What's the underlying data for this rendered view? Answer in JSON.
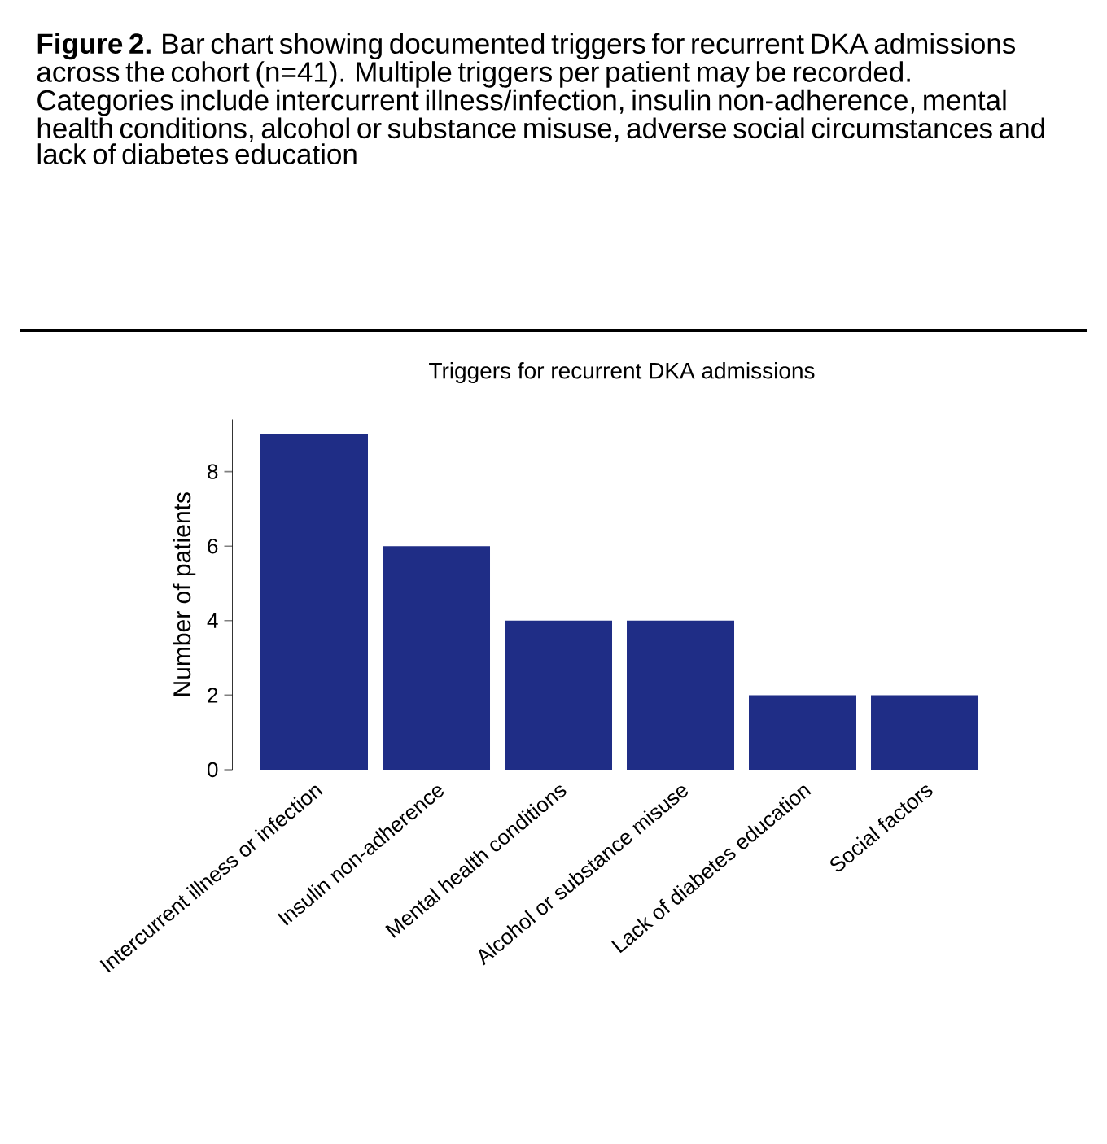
{
  "chart_data": {
    "type": "bar",
    "title": "**Figure 2.**  Bar chart showing documented triggers for recurrent DKA admissions across the cohort (n=41). Multiple triggers per patient may be recorded. Categories include intercurrent illness/infection, insulin non-adherence, mental health conditions, alcohol or substance misuse, adverse social circumstances and lack of diabetes education",
    "subtitle": "Triggers for recurrent DKA admissions",
    "ylabel": "Number of patients",
    "categories": [
      "Intercurrent illness or infection",
      "Insulin non-adherence",
      "Mental health conditions",
      "Alcohol or substance misuse",
      "Lack of diabetes education",
      "Social factors"
    ],
    "values": [
      9,
      6,
      4,
      4,
      2,
      2
    ],
    "color": "#1f2d86",
    "ylim": [
      0,
      9.4
    ],
    "yticks": [
      0,
      2,
      4,
      6,
      8
    ]
  }
}
